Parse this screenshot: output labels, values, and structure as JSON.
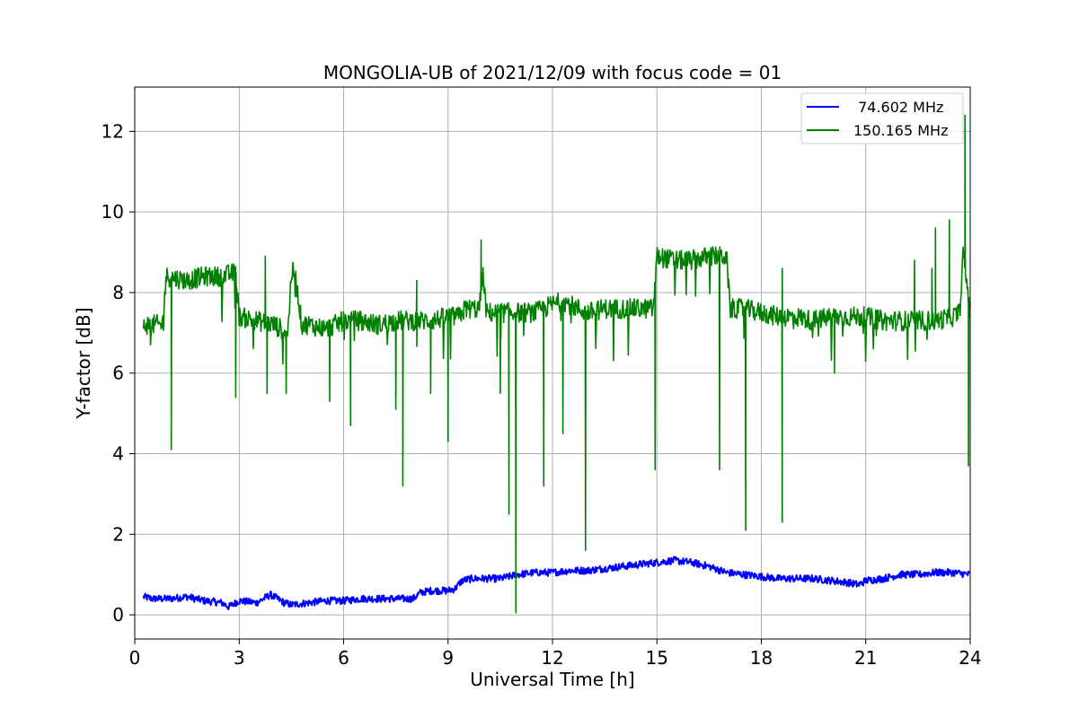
{
  "chart_data": {
    "type": "line",
    "title": "MONGOLIA-UB of 2021/12/09 with focus code = 01",
    "xlabel": "Universal Time [h]",
    "ylabel": "Y-factor [dB]",
    "xlim": [
      0,
      24
    ],
    "ylim": [
      -0.6,
      13.1
    ],
    "xticks": [
      0,
      3,
      6,
      9,
      12,
      15,
      18,
      21,
      24
    ],
    "yticks": [
      0,
      2,
      4,
      6,
      8,
      10,
      12
    ],
    "grid": true,
    "legend_position": "top-right",
    "series": [
      {
        "name": " 74.602 MHz",
        "color": "#0000ff",
        "x": [
          0.25,
          0.5,
          1.0,
          1.5,
          2.0,
          2.5,
          2.7,
          3.0,
          3.5,
          3.9,
          4.1,
          4.3,
          4.5,
          5.0,
          5.5,
          6.0,
          6.5,
          7.0,
          7.5,
          8.0,
          8.2,
          8.5,
          9.0,
          9.2,
          9.4,
          9.7,
          10.0,
          10.5,
          11.0,
          11.5,
          12.0,
          12.5,
          13.0,
          13.5,
          14.0,
          14.5,
          15.0,
          15.5,
          16.0,
          16.5,
          17.0,
          17.5,
          18.0,
          18.5,
          19.0,
          19.5,
          20.0,
          20.5,
          20.8,
          21.0,
          21.5,
          22.0,
          22.5,
          23.0,
          23.5,
          24.0
        ],
        "y": [
          0.45,
          0.4,
          0.4,
          0.45,
          0.35,
          0.3,
          0.2,
          0.35,
          0.3,
          0.5,
          0.4,
          0.3,
          0.25,
          0.3,
          0.35,
          0.35,
          0.4,
          0.4,
          0.4,
          0.4,
          0.55,
          0.6,
          0.6,
          0.65,
          0.85,
          0.9,
          0.9,
          0.9,
          1.0,
          1.05,
          1.05,
          1.1,
          1.1,
          1.15,
          1.2,
          1.25,
          1.3,
          1.35,
          1.3,
          1.2,
          1.05,
          1.0,
          0.95,
          0.9,
          0.9,
          0.9,
          0.85,
          0.8,
          0.75,
          0.85,
          0.9,
          1.0,
          1.0,
          1.05,
          1.05,
          1.0
        ],
        "noise": 0.09
      },
      {
        "name": "150.165 MHz",
        "color": "#008000",
        "x": [
          0.25,
          0.5,
          0.8,
          0.9,
          1.5,
          2.0,
          2.5,
          2.9,
          3.0,
          3.5,
          4.0,
          4.4,
          4.5,
          4.6,
          4.8,
          5.0,
          5.5,
          6.0,
          6.5,
          7.0,
          7.5,
          8.0,
          8.5,
          9.0,
          9.3,
          9.5,
          9.9,
          10.0,
          10.1,
          10.5,
          11.0,
          11.5,
          12.0,
          12.3,
          12.5,
          13.0,
          13.5,
          14.0,
          14.5,
          14.9,
          15.0,
          15.5,
          16.0,
          16.5,
          17.0,
          17.1,
          17.5,
          18.0,
          18.5,
          19.0,
          19.5,
          20.0,
          20.5,
          21.0,
          21.5,
          22.0,
          22.5,
          23.0,
          23.5,
          23.7,
          23.8,
          24.0
        ],
        "y": [
          7.2,
          7.2,
          7.2,
          8.4,
          8.3,
          8.4,
          8.4,
          8.5,
          7.4,
          7.3,
          7.2,
          7.0,
          8.5,
          8.5,
          7.2,
          7.2,
          7.1,
          7.3,
          7.3,
          7.2,
          7.3,
          7.3,
          7.3,
          7.4,
          7.4,
          7.6,
          7.6,
          8.5,
          7.5,
          7.5,
          7.5,
          7.5,
          7.7,
          7.8,
          7.7,
          7.5,
          7.6,
          7.6,
          7.6,
          7.6,
          8.9,
          8.8,
          8.8,
          8.9,
          8.9,
          7.6,
          7.6,
          7.5,
          7.4,
          7.4,
          7.3,
          7.4,
          7.4,
          7.4,
          7.3,
          7.3,
          7.3,
          7.3,
          7.4,
          7.5,
          9.0,
          7.5
        ],
        "noise": 0.25,
        "dips": [
          [
            1.05,
            4.1
          ],
          [
            2.9,
            5.4
          ],
          [
            3.8,
            5.5
          ],
          [
            4.35,
            5.5
          ],
          [
            5.6,
            5.3
          ],
          [
            6.2,
            4.7
          ],
          [
            7.5,
            5.1
          ],
          [
            7.7,
            3.2
          ],
          [
            8.5,
            5.5
          ],
          [
            9.0,
            4.3
          ],
          [
            10.5,
            5.5
          ],
          [
            10.75,
            2.5
          ],
          [
            10.95,
            0.05
          ],
          [
            11.75,
            3.2
          ],
          [
            12.3,
            4.5
          ],
          [
            12.95,
            1.6
          ],
          [
            14.95,
            3.6
          ],
          [
            16.8,
            3.6
          ],
          [
            17.55,
            2.1
          ],
          [
            18.6,
            2.3
          ],
          [
            20.1,
            6.0
          ],
          [
            23.95,
            3.7
          ]
        ],
        "spikes": [
          [
            3.75,
            8.9
          ],
          [
            8.1,
            8.3
          ],
          [
            9.95,
            9.3
          ],
          [
            18.6,
            8.6
          ],
          [
            22.4,
            8.8
          ],
          [
            22.9,
            8.6
          ],
          [
            23.0,
            9.6
          ],
          [
            23.4,
            9.8
          ],
          [
            23.85,
            12.4
          ]
        ]
      }
    ]
  }
}
